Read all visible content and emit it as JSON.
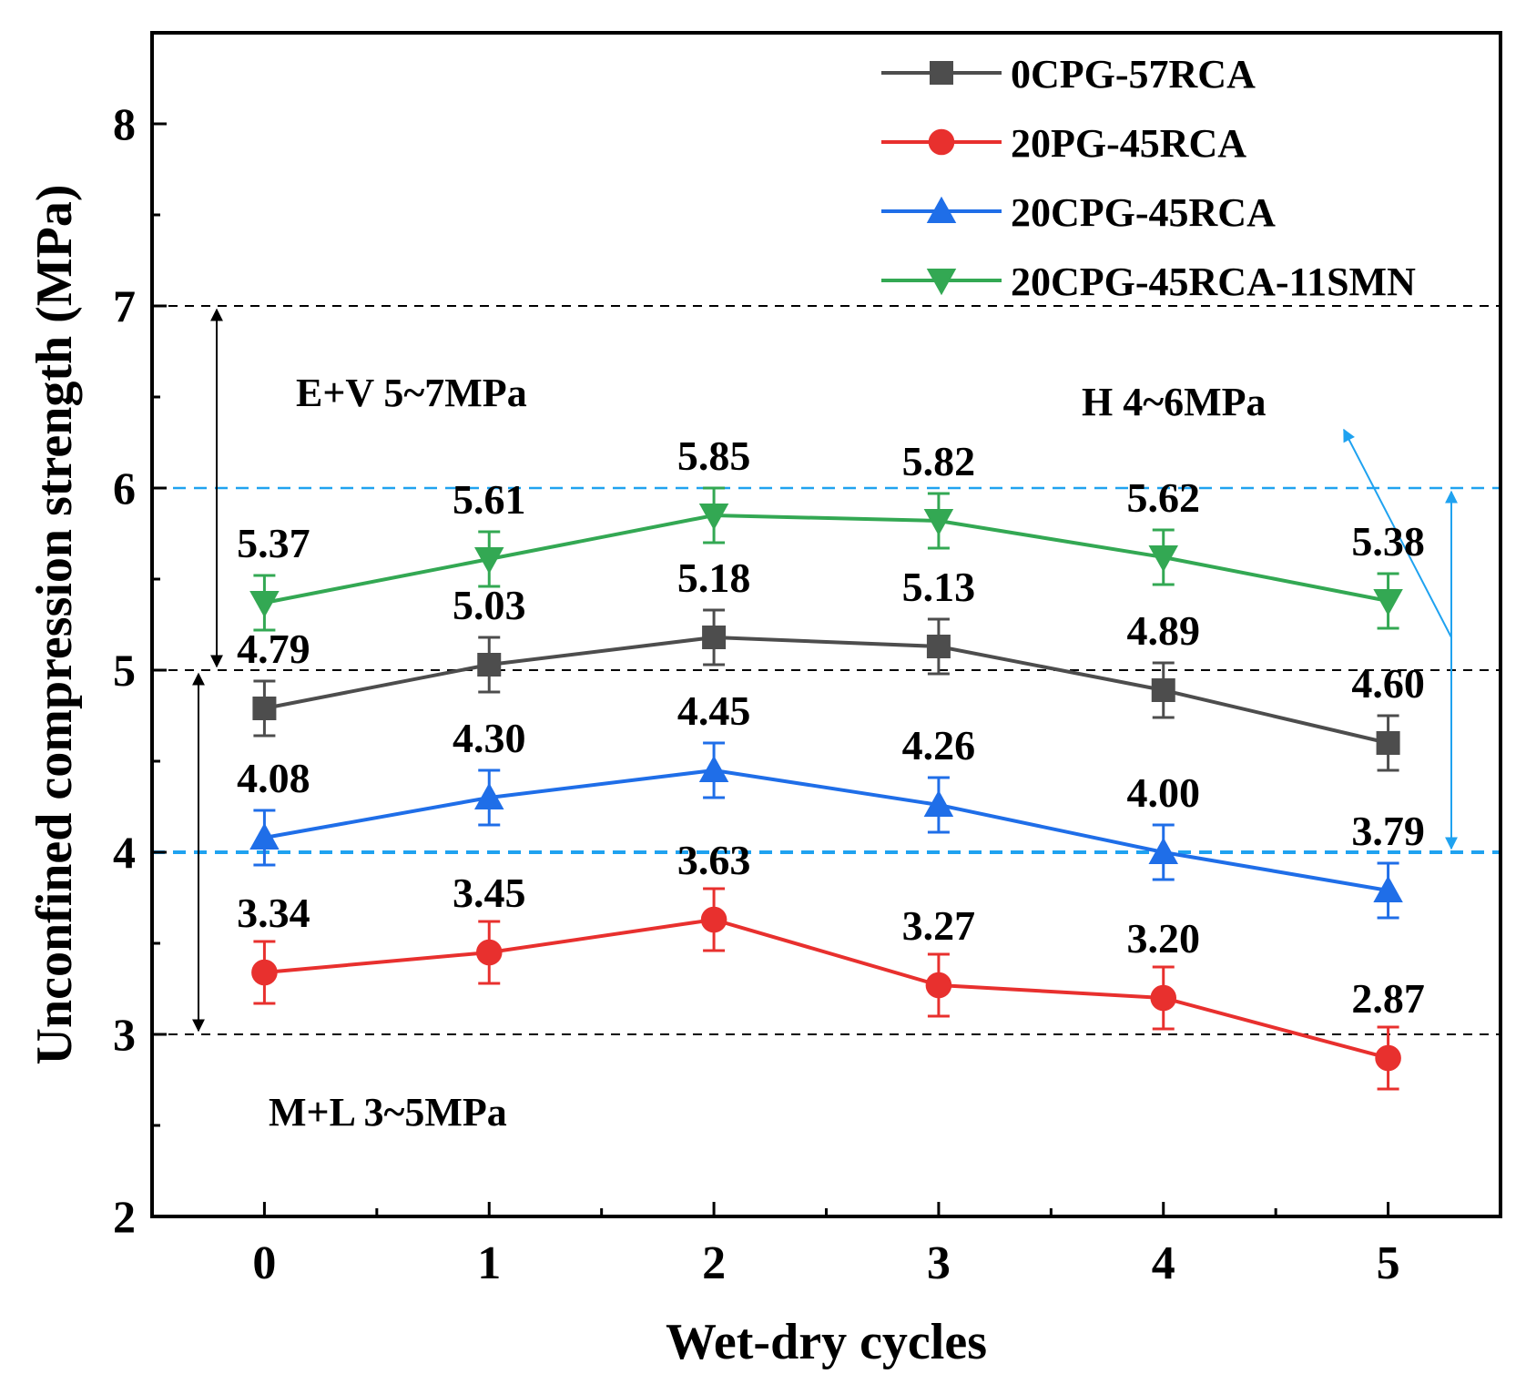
{
  "chart_data": {
    "type": "line",
    "title": "",
    "xlabel": "Wet-dry cycles",
    "ylabel": "Unconfined compression strength (MPa)",
    "x": [
      0,
      1,
      2,
      3,
      4,
      5
    ],
    "xlim": [
      -0.5,
      5.5
    ],
    "ylim": [
      2,
      8.5
    ],
    "xticks": [
      0,
      1,
      2,
      3,
      4,
      5
    ],
    "yticks": [
      2,
      3,
      4,
      5,
      6,
      7,
      8
    ],
    "grid": false,
    "legend_position": "top-right",
    "series": [
      {
        "name": "0CPG-57RCA",
        "color": "#4d4d4d",
        "marker": "square",
        "values": [
          4.79,
          5.03,
          5.18,
          5.13,
          4.89,
          4.6
        ],
        "labels": [
          "4.79",
          "5.03",
          "5.18",
          "5.13",
          "4.89",
          "4.60"
        ],
        "error": [
          0.15,
          0.15,
          0.15,
          0.15,
          0.15,
          0.15
        ]
      },
      {
        "name": "20PG-45RCA",
        "color": "#e8302e",
        "marker": "circle",
        "values": [
          3.34,
          3.45,
          3.63,
          3.27,
          3.2,
          2.87
        ],
        "labels": [
          "3.34",
          "3.45",
          "3.63",
          "3.27",
          "3.20",
          "2.87"
        ],
        "error": [
          0.17,
          0.17,
          0.17,
          0.17,
          0.17,
          0.17
        ]
      },
      {
        "name": "20CPG-45RCA",
        "color": "#1f6ee8",
        "marker": "triangle-up",
        "values": [
          4.08,
          4.3,
          4.45,
          4.26,
          4.0,
          3.79
        ],
        "labels": [
          "4.08",
          "4.30",
          "4.45",
          "4.26",
          "4.00",
          "3.79"
        ],
        "error": [
          0.15,
          0.15,
          0.15,
          0.15,
          0.15,
          0.15
        ]
      },
      {
        "name": "20CPG-45RCA-11SMN",
        "color": "#33a853",
        "marker": "triangle-down",
        "values": [
          5.37,
          5.61,
          5.85,
          5.82,
          5.62,
          5.38
        ],
        "labels": [
          "5.37",
          "5.61",
          "5.85",
          "5.82",
          "5.62",
          "5.38"
        ],
        "error": [
          0.15,
          0.15,
          0.15,
          0.15,
          0.15,
          0.15
        ]
      }
    ],
    "reference_lines": [
      {
        "y": 7,
        "color": "#000000",
        "style": "dashed"
      },
      {
        "y": 6,
        "color": "#1fa2f0",
        "style": "dashed"
      },
      {
        "y": 5,
        "color": "#000000",
        "style": "dashed"
      },
      {
        "y": 4,
        "color": "#1fa2f0",
        "style": "dashed"
      },
      {
        "y": 3,
        "color": "#000000",
        "style": "dashed"
      }
    ],
    "ranges": [
      {
        "label": "E+V  5~7MPa",
        "from": 5,
        "to": 7,
        "color": "#000000"
      },
      {
        "label": "H  4~6MPa",
        "from": 4,
        "to": 6,
        "color": "#1fa2f0"
      },
      {
        "label": "M+L  3~5MPa",
        "from": 3,
        "to": 5,
        "color": "#000000"
      }
    ]
  }
}
